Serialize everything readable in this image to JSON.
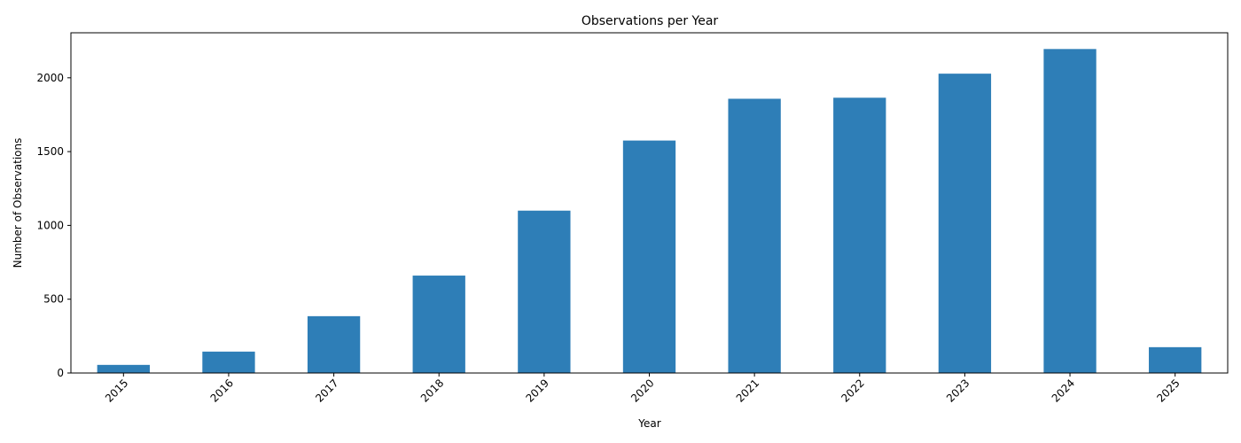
{
  "colors": {
    "bar": "#2e7eb7",
    "axis": "#000000",
    "background": "#ffffff"
  },
  "chart_data": {
    "type": "bar",
    "title": "Observations per Year",
    "xlabel": "Year",
    "ylabel": "Number of Observations",
    "categories": [
      "2015",
      "2016",
      "2017",
      "2018",
      "2019",
      "2020",
      "2021",
      "2022",
      "2023",
      "2024",
      "2025"
    ],
    "values": [
      55,
      145,
      385,
      660,
      1100,
      1575,
      1858,
      1865,
      2028,
      2195,
      175
    ],
    "ylim": [
      0,
      2305
    ],
    "yticks": [
      0,
      500,
      1000,
      1500,
      2000
    ],
    "ytick_labels": [
      "0",
      "500",
      "1000",
      "1500",
      "2000"
    ],
    "xtick_rotation": 45,
    "grid": false,
    "legend": false
  }
}
